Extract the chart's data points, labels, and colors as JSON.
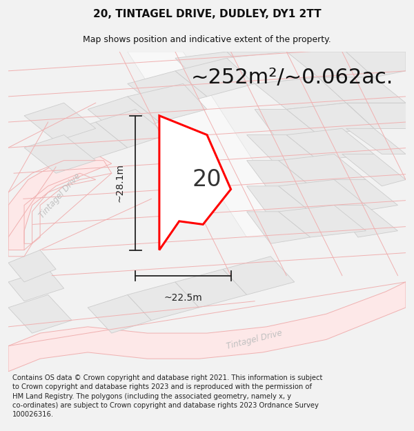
{
  "title_line1": "20, TINTAGEL DRIVE, DUDLEY, DY1 2TT",
  "title_line2": "Map shows position and indicative extent of the property.",
  "area_text": "~252m²/~0.062ac.",
  "width_label": "~22.5m",
  "height_label": "~28.1m",
  "number_label": "20",
  "footer_text": "Contains OS data © Crown copyright and database right 2021. This information is subject to Crown copyright and database rights 2023 and is reproduced with the permission of HM Land Registry. The polygons (including the associated geometry, namely x, y co-ordinates) are subject to Crown copyright and database rights 2023 Ordnance Survey 100026316.",
  "bg_color": "#f2f2f2",
  "map_bg": "#ffffff",
  "parcel_fill": "#e8e8e8",
  "parcel_edge": "#cccccc",
  "road_fill": "#f5f5f5",
  "pink_line": "#f0b0b0",
  "pink_fill": "#fde8e8",
  "property_fill": "#ffffff",
  "property_stroke": "#ff0000",
  "road_text_color": "#c0c0c0",
  "dim_color": "#222222",
  "title_fs": 11,
  "subtitle_fs": 9,
  "area_fs": 22,
  "dim_fs": 10,
  "number_fs": 24,
  "footer_fs": 7.2
}
